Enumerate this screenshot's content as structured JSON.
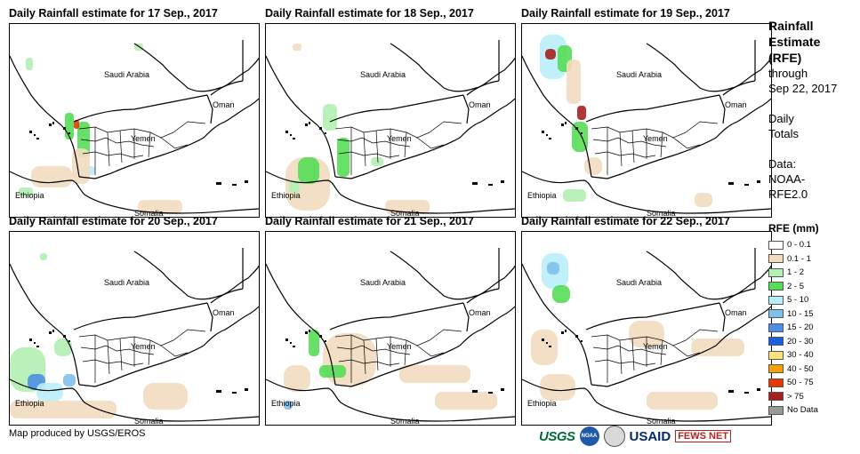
{
  "panels": [
    {
      "title": "Daily Rainfall estimate for 17 Sep., 2017"
    },
    {
      "title": "Daily Rainfall estimate for 18 Sep., 2017"
    },
    {
      "title": "Daily Rainfall estimate for 19 Sep., 2017"
    },
    {
      "title": "Daily Rainfall estimate for 20 Sep., 2017"
    },
    {
      "title": "Daily Rainfall estimate for 21 Sep., 2017"
    },
    {
      "title": "Daily Rainfall estimate for 22 Sep., 2017"
    }
  ],
  "map_labels": {
    "saudi": "Saudi Arabia",
    "oman": "Oman",
    "yemen": "Yemen",
    "ethiopia": "Ethiopia",
    "somalia": "Somalia"
  },
  "side": {
    "line1": "Rainfall",
    "line2": "Estimate",
    "line3": "(RFE)",
    "line4": "through",
    "line5": "Sep 22, 2017",
    "daily1": "Daily",
    "daily2": "Totals",
    "data1": "Data:",
    "data2": "NOAA-",
    "data3": "RFE2.0"
  },
  "legend": {
    "title": "RFE (mm)",
    "items": [
      {
        "label": "0 - 0.1",
        "color": "#ffffff"
      },
      {
        "label": "0.1 - 1",
        "color": "#f2dcc0"
      },
      {
        "label": "1 - 2",
        "color": "#b3f0b3"
      },
      {
        "label": "2 - 5",
        "color": "#55dd55"
      },
      {
        "label": "5 - 10",
        "color": "#b9eefa"
      },
      {
        "label": "10 - 15",
        "color": "#80c0ee"
      },
      {
        "label": "15 - 20",
        "color": "#4d8ee6"
      },
      {
        "label": "20 - 30",
        "color": "#1a5fe0"
      },
      {
        "label": "30 - 40",
        "color": "#fce27a"
      },
      {
        "label": "40 - 50",
        "color": "#f7a000"
      },
      {
        "label": "50 - 75",
        "color": "#e83a00"
      },
      {
        "label": "> 75",
        "color": "#a52020"
      },
      {
        "label": "No Data",
        "color": "#999999"
      }
    ]
  },
  "footer": "Map produced by USGS/EROS",
  "logos": {
    "usgs": "USGS",
    "noaa": "NOAA",
    "usaid": "USAID",
    "fews": "FEWS NET"
  }
}
